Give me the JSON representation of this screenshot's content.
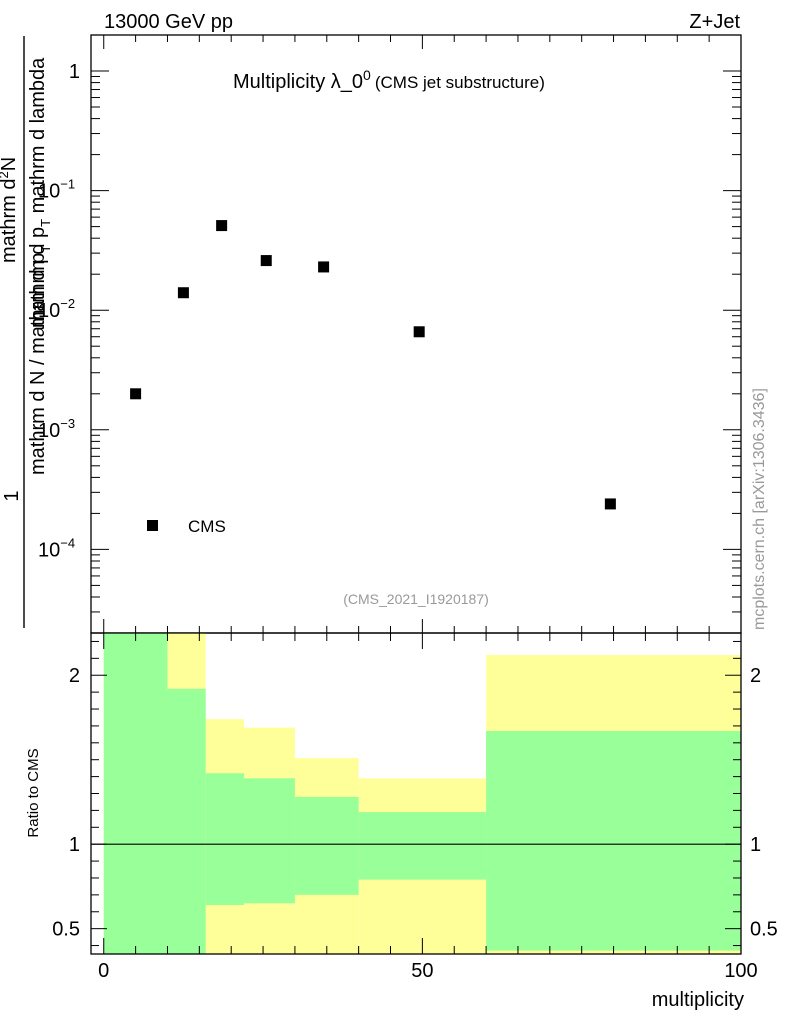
{
  "header": {
    "energy": "13000 GeV pp",
    "process": "Z+Jet",
    "watermark": "mcplots.cern.ch [arXiv:1306.3436]"
  },
  "main": {
    "title": "Multiplicity λ_0",
    "title_sup": "0",
    "title_note": "(CMS jet substructure)",
    "analysis_id": "(CMS_2021_I1920187)",
    "legend_label": "CMS",
    "ylabel": "1 / mathrm d N / mathrm d p_T mathrm d^2 N / mathrm d p_T mathrm d lambda",
    "ylabel_parts": {
      "one": "1",
      "num_a": "mathrm d",
      "num_sup": "2",
      "num_b": "N",
      "den_a": "mathrm d p",
      "den_b": " mathrm d lambda",
      "den_sub": "T",
      "bot_a": "mathrm d N / mathrm d p",
      "bot_sub": "T"
    }
  },
  "ratio": {
    "ylabel": "Ratio to CMS",
    "xlabel": "multiplicity"
  },
  "colors": {
    "band_outer": "#ffff99",
    "band_inner": "#99ff99",
    "marker": "#000000"
  },
  "chart_data": [
    {
      "type": "scatter",
      "title": "Multiplicity λ_0^0 (CMS jet substructure)",
      "yscale": "log",
      "xlim": [
        -2,
        100
      ],
      "ylim": [
        2e-05,
        2
      ],
      "x": [
        5,
        12.5,
        18.5,
        25.5,
        34.5,
        49.5,
        79.5
      ],
      "y": [
        0.002,
        0.014,
        0.051,
        0.026,
        0.023,
        0.0066,
        0.00024
      ],
      "y_ticks": [
        {
          "value": 1,
          "base": "1",
          "exp": ""
        },
        {
          "value": 0.1,
          "base": "10",
          "exp": "−1"
        },
        {
          "value": 0.01,
          "base": "10",
          "exp": "−2"
        },
        {
          "value": 0.001,
          "base": "10",
          "exp": "−3"
        },
        {
          "value": 0.0001,
          "base": "10",
          "exp": "−4"
        }
      ],
      "series": [
        {
          "name": "CMS",
          "marker": "square"
        }
      ]
    },
    {
      "type": "area",
      "title": "Ratio to CMS",
      "xlabel": "multiplicity",
      "xlim": [
        -2,
        100
      ],
      "ylim": [
        0.35,
        2.25
      ],
      "reference_line": 1,
      "bin_edges": [
        0,
        10,
        16,
        22,
        30,
        40,
        60,
        100
      ],
      "inner_band_lo": [
        0.35,
        0.35,
        0.64,
        0.65,
        0.7,
        0.79,
        0.37
      ],
      "inner_band_hi": [
        2.25,
        1.92,
        1.42,
        1.39,
        1.28,
        1.19,
        1.67
      ],
      "outer_band_lo": [
        0.35,
        0.35,
        0.35,
        0.35,
        0.35,
        0.35,
        0.35
      ],
      "outer_band_hi": [
        2.25,
        2.25,
        1.74,
        1.69,
        1.51,
        1.39,
        2.12
      ],
      "x_ticks": [
        0,
        50,
        100
      ],
      "y_ticks": [
        0.5,
        1,
        2
      ],
      "y_tick_labels": [
        "0.5",
        "1",
        "2"
      ]
    }
  ]
}
